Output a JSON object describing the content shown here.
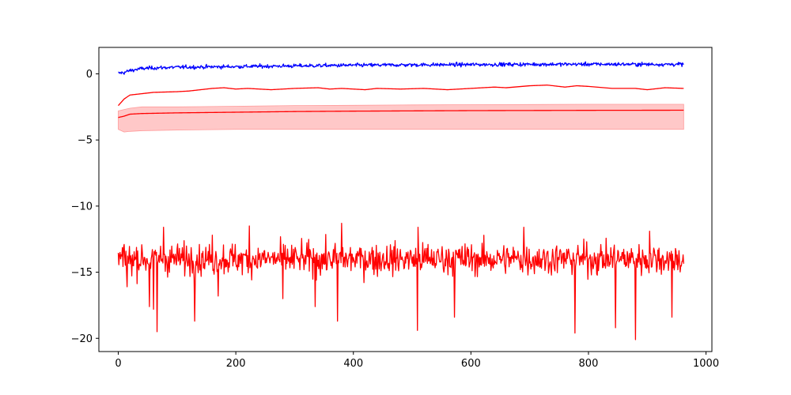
{
  "chart_data": {
    "type": "line",
    "title": "",
    "xlabel": "",
    "ylabel": "",
    "xlim": [
      -33,
      1010
    ],
    "ylim": [
      -21,
      2
    ],
    "grid": false,
    "x_ticks": [
      0,
      200,
      400,
      600,
      800,
      1000
    ],
    "y_ticks": [
      0,
      -5,
      -10,
      -15,
      -20
    ],
    "x_tick_labels": [
      "0",
      "200",
      "400",
      "600",
      "800",
      "1000"
    ],
    "y_tick_labels": [
      "0",
      "−5",
      "−10",
      "−15",
      "−20"
    ],
    "colors": {
      "blue": "#0000ff",
      "red": "#ff0000",
      "band_fill": "#ffc8c8"
    },
    "series": [
      {
        "color": "#0000ff",
        "style": "noisy-line",
        "x_range": [
          0,
          962
        ],
        "values_xy": [
          [
            0,
            0.05
          ],
          [
            10,
            0.1
          ],
          [
            20,
            0.25
          ],
          [
            40,
            0.4
          ],
          [
            60,
            0.45
          ],
          [
            100,
            0.5
          ],
          [
            200,
            0.55
          ],
          [
            300,
            0.6
          ],
          [
            400,
            0.65
          ],
          [
            500,
            0.68
          ],
          [
            600,
            0.7
          ],
          [
            700,
            0.72
          ],
          [
            800,
            0.73
          ],
          [
            900,
            0.72
          ],
          [
            962,
            0.72
          ]
        ],
        "noise_amplitude": 0.12
      },
      {
        "color": "#ff0000",
        "style": "line",
        "values_xy": [
          [
            0,
            -2.4
          ],
          [
            10,
            -1.9
          ],
          [
            20,
            -1.6
          ],
          [
            40,
            -1.5
          ],
          [
            60,
            -1.4
          ],
          [
            100,
            -1.35
          ],
          [
            120,
            -1.3
          ],
          [
            140,
            -1.2
          ],
          [
            160,
            -1.1
          ],
          [
            180,
            -1.05
          ],
          [
            200,
            -1.15
          ],
          [
            220,
            -1.1
          ],
          [
            260,
            -1.2
          ],
          [
            300,
            -1.1
          ],
          [
            340,
            -1.05
          ],
          [
            360,
            -1.15
          ],
          [
            380,
            -1.1
          ],
          [
            420,
            -1.2
          ],
          [
            440,
            -1.1
          ],
          [
            480,
            -1.15
          ],
          [
            520,
            -1.1
          ],
          [
            560,
            -1.2
          ],
          [
            600,
            -1.1
          ],
          [
            640,
            -1.0
          ],
          [
            660,
            -1.05
          ],
          [
            700,
            -0.9
          ],
          [
            730,
            -0.85
          ],
          [
            760,
            -1.0
          ],
          [
            780,
            -0.9
          ],
          [
            800,
            -0.95
          ],
          [
            840,
            -1.1
          ],
          [
            880,
            -1.1
          ],
          [
            900,
            -1.2
          ],
          [
            930,
            -1.05
          ],
          [
            962,
            -1.1
          ]
        ]
      },
      {
        "color": "#ff0000",
        "style": "line-with-band",
        "values_xy": [
          [
            0,
            -3.3
          ],
          [
            10,
            -3.2
          ],
          [
            20,
            -3.05
          ],
          [
            40,
            -3.0
          ],
          [
            100,
            -2.95
          ],
          [
            200,
            -2.9
          ],
          [
            300,
            -2.85
          ],
          [
            400,
            -2.82
          ],
          [
            500,
            -2.8
          ],
          [
            600,
            -2.78
          ],
          [
            700,
            -2.77
          ],
          [
            800,
            -2.76
          ],
          [
            962,
            -2.75
          ]
        ],
        "band_upper_xy": [
          [
            0,
            -2.8
          ],
          [
            10,
            -2.7
          ],
          [
            20,
            -2.6
          ],
          [
            40,
            -2.5
          ],
          [
            100,
            -2.5
          ],
          [
            200,
            -2.45
          ],
          [
            300,
            -2.4
          ],
          [
            400,
            -2.38
          ],
          [
            500,
            -2.35
          ],
          [
            600,
            -2.33
          ],
          [
            700,
            -2.32
          ],
          [
            800,
            -2.3
          ],
          [
            962,
            -2.3
          ]
        ],
        "band_lower_xy": [
          [
            0,
            -4.2
          ],
          [
            10,
            -4.4
          ],
          [
            20,
            -4.35
          ],
          [
            40,
            -4.3
          ],
          [
            100,
            -4.25
          ],
          [
            200,
            -4.2
          ],
          [
            300,
            -4.2
          ],
          [
            400,
            -4.2
          ],
          [
            500,
            -4.2
          ],
          [
            600,
            -4.2
          ],
          [
            700,
            -4.2
          ],
          [
            800,
            -4.2
          ],
          [
            962,
            -4.2
          ]
        ]
      },
      {
        "color": "#ff0000",
        "style": "noisy-line",
        "x_range": [
          0,
          962
        ],
        "values_xy": [
          [
            0,
            -14.0
          ],
          [
            962,
            -14.0
          ]
        ],
        "noise_amplitude": 1.0,
        "spikes_xy": [
          [
            15,
            -16.1
          ],
          [
            53,
            -17.6
          ],
          [
            60,
            -17.8
          ],
          [
            66,
            -19.5
          ],
          [
            130,
            -18.7
          ],
          [
            170,
            -16.8
          ],
          [
            280,
            -17.0
          ],
          [
            335,
            -17.6
          ],
          [
            373,
            -18.7
          ],
          [
            509,
            -19.4
          ],
          [
            572,
            -18.4
          ],
          [
            777,
            -19.6
          ],
          [
            846,
            -19.2
          ],
          [
            880,
            -20.1
          ],
          [
            942,
            -18.4
          ],
          [
            223,
            -11.5
          ],
          [
            380,
            -11.3
          ],
          [
            77,
            -11.6
          ],
          [
            510,
            -11.6
          ],
          [
            690,
            -11.6
          ],
          [
            904,
            -11.9
          ],
          [
            160,
            -12.2
          ]
        ]
      }
    ]
  }
}
